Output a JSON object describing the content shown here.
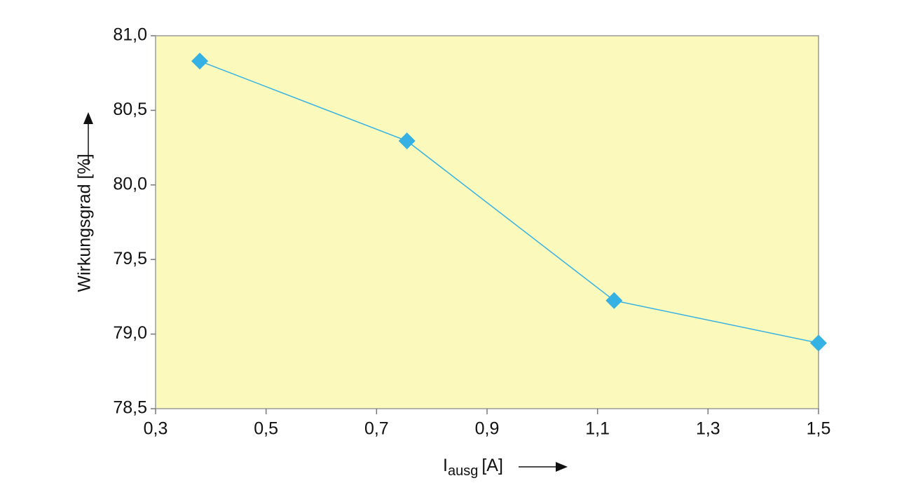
{
  "chart_data": {
    "type": "line",
    "ylabel": "Wirkungsgrad [%]",
    "xlabel": {
      "text": "I",
      "subscript": "ausg",
      "unit": "[A]"
    },
    "x": [
      0.38,
      0.755,
      1.13,
      1.5
    ],
    "series": [
      {
        "color": "#35b2e3",
        "values": [
          80.83,
          80.295,
          79.225,
          78.94
        ]
      }
    ],
    "xlim": [
      0.3,
      1.5
    ],
    "xticks": [
      {
        "value": 0.3,
        "label": "0,3"
      },
      {
        "value": 0.5,
        "label": "0,5"
      },
      {
        "value": 0.7,
        "label": "0,7"
      },
      {
        "value": 0.9,
        "label": "0,9"
      },
      {
        "value": 1.1,
        "label": "1,1"
      },
      {
        "value": 1.3,
        "label": "1,3"
      },
      {
        "value": 1.5,
        "label": "1,5"
      }
    ],
    "ylim": [
      78.5,
      81.0
    ],
    "yticks": [
      {
        "value": 78.5,
        "label": "78,5"
      },
      {
        "value": 79.0,
        "label": "79,0"
      },
      {
        "value": 79.5,
        "label": "79,5"
      },
      {
        "value": 80.0,
        "label": "80,0"
      },
      {
        "value": 80.5,
        "label": "80,5"
      },
      {
        "value": 81.0,
        "label": "81,0"
      }
    ],
    "plot_background": "#fcf9bc",
    "grid": false
  }
}
